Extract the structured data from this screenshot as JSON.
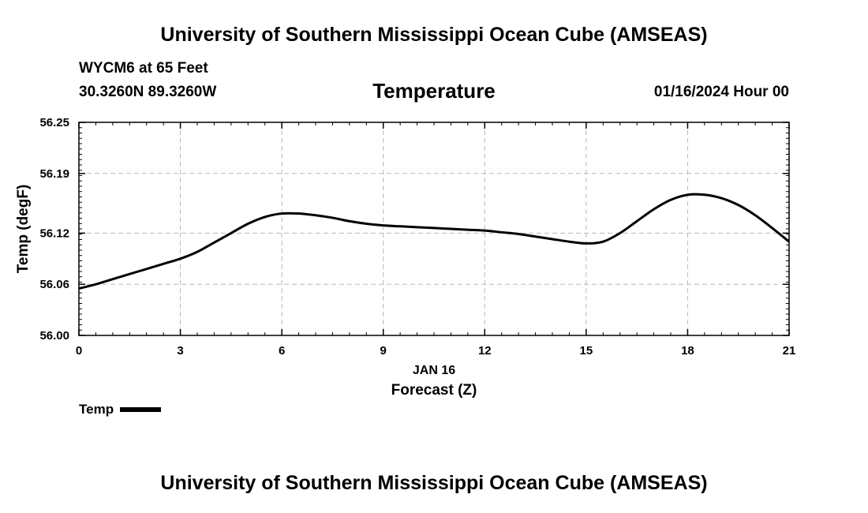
{
  "header": {
    "top_title": "University of Southern Mississippi Ocean Cube (AMSEAS)",
    "station": "WYCM6 at 65 Feet",
    "coords": "30.3260N  89.3260W",
    "variable": "Temperature",
    "datetime": "01/16/2024 Hour 00",
    "bottom_title": "University of Southern Mississippi Ocean Cube (AMSEAS)"
  },
  "legend": {
    "label": "Temp"
  },
  "chart_data": {
    "type": "line",
    "title": "Temperature",
    "xlabel": "Forecast (Z)",
    "xsublabel": "JAN 16",
    "ylabel": "Temp (degF)",
    "xlim": [
      0,
      21
    ],
    "ylim": [
      56.0,
      56.25
    ],
    "xticks": [
      0,
      3,
      6,
      9,
      12,
      15,
      18,
      21
    ],
    "xtick_labels": [
      "0",
      "3",
      "6",
      "9",
      "12",
      "15",
      "18",
      "21"
    ],
    "yticks": [
      56.0,
      56.06,
      56.12,
      56.19,
      56.25
    ],
    "ytick_labels": [
      "56.00",
      "56.06",
      "56.12",
      "56.19",
      "56.25"
    ],
    "grid": true,
    "series": [
      {
        "name": "Temp",
        "color": "#000000",
        "x": [
          0,
          0.5,
          1,
          1.5,
          2,
          2.5,
          3,
          3.5,
          4,
          4.5,
          5,
          5.5,
          6,
          6.5,
          7,
          7.5,
          8,
          8.5,
          9,
          9.5,
          10,
          10.5,
          11,
          11.5,
          12,
          12.5,
          13,
          13.5,
          14,
          14.5,
          15,
          15.5,
          16,
          16.5,
          17,
          17.5,
          18,
          18.5,
          19,
          19.5,
          20,
          20.5,
          21
        ],
        "y": [
          56.055,
          56.06,
          56.066,
          56.072,
          56.078,
          56.084,
          56.09,
          56.098,
          56.109,
          56.12,
          56.131,
          56.139,
          56.143,
          56.143,
          56.141,
          56.138,
          56.134,
          56.131,
          56.129,
          56.128,
          56.127,
          56.126,
          56.125,
          56.124,
          56.123,
          56.121,
          56.119,
          56.116,
          56.113,
          56.11,
          56.108,
          56.11,
          56.12,
          56.134,
          56.148,
          56.159,
          56.165,
          56.165,
          56.161,
          56.153,
          56.141,
          56.126,
          56.11
        ]
      }
    ]
  }
}
